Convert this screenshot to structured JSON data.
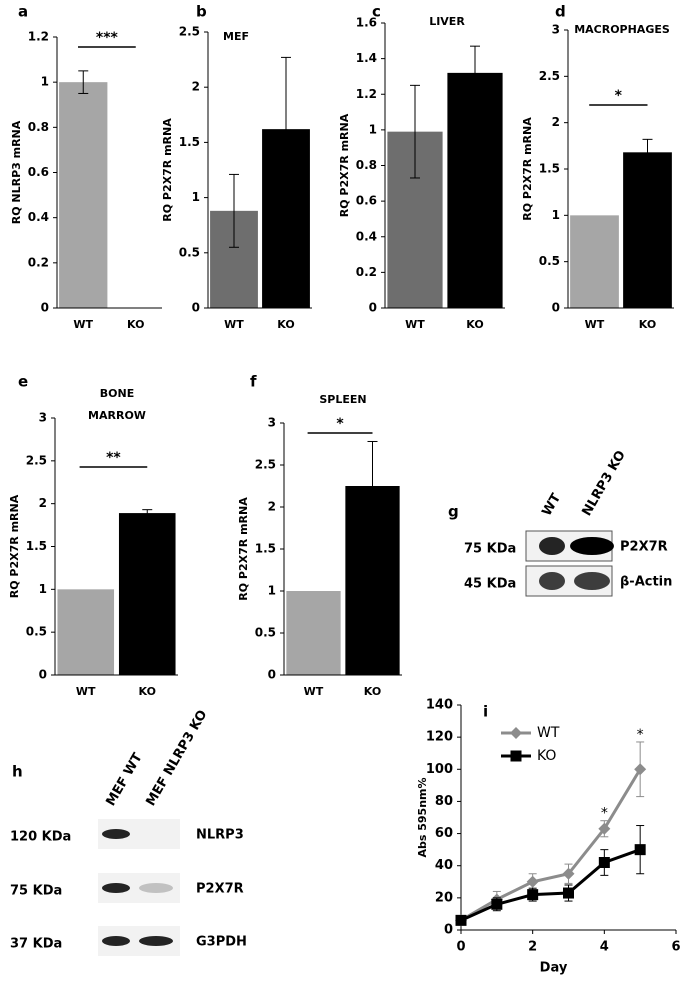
{
  "chart_data": [
    {
      "type": "bar",
      "panel": "a",
      "ylabel": "RQ NLRP3 mRNA",
      "categories": [
        "WT",
        "KO"
      ],
      "values": [
        1.0,
        0
      ],
      "errors": [
        0.05,
        null
      ],
      "colors": [
        "#a6a6a6",
        "#000000"
      ],
      "ylim": [
        0,
        1.2
      ],
      "yticks": [
        0,
        0.2,
        0.4,
        0.6,
        0.8,
        1,
        1.2
      ],
      "significance": "***"
    },
    {
      "type": "bar",
      "panel": "b",
      "title": "MEF",
      "ylabel": "RQ P2X7R mRNA",
      "categories": [
        "WT",
        "KO"
      ],
      "values": [
        0.88,
        1.62
      ],
      "errors": [
        0.33,
        0.65
      ],
      "colors": [
        "#6e6e6e",
        "#000000"
      ],
      "ylim": [
        0,
        2.5
      ],
      "yticks": [
        0,
        0.5,
        1,
        1.5,
        2,
        2.5
      ]
    },
    {
      "type": "bar",
      "panel": "c",
      "title": "LIVER",
      "ylabel": "RQ P2X7R mRNA",
      "categories": [
        "WT",
        "KO"
      ],
      "values": [
        0.99,
        1.32
      ],
      "errors": [
        0.26,
        0.15
      ],
      "colors": [
        "#6e6e6e",
        "#000000"
      ],
      "ylim": [
        0,
        1.6
      ],
      "yticks": [
        0,
        0.2,
        0.4,
        0.6,
        0.8,
        1,
        1.2,
        1.4,
        1.6
      ]
    },
    {
      "type": "bar",
      "panel": "d",
      "title": "MACROPHAGES",
      "ylabel": "RQ P2X7R mRNA",
      "categories": [
        "WT",
        "KO"
      ],
      "values": [
        1.0,
        1.68
      ],
      "errors": [
        null,
        0.14
      ],
      "colors": [
        "#a6a6a6",
        "#000000"
      ],
      "ylim": [
        0,
        3
      ],
      "yticks": [
        0,
        0.5,
        1,
        1.5,
        2,
        2.5,
        3
      ],
      "significance": "*"
    },
    {
      "type": "bar",
      "panel": "e",
      "title": "BONE MARROW",
      "ylabel": "RQ P2X7R mRNA",
      "categories": [
        "WT",
        "KO"
      ],
      "values": [
        1.0,
        1.89
      ],
      "errors": [
        null,
        0.04
      ],
      "colors": [
        "#a6a6a6",
        "#000000"
      ],
      "ylim": [
        0,
        3
      ],
      "yticks": [
        0,
        0.5,
        1,
        1.5,
        2,
        2.5,
        3
      ],
      "significance": "**"
    },
    {
      "type": "bar",
      "panel": "f",
      "title": "SPLEEN",
      "ylabel": "RQ P2X7R mRNA",
      "categories": [
        "WT",
        "KO"
      ],
      "values": [
        1.0,
        2.25
      ],
      "errors": [
        null,
        0.53
      ],
      "colors": [
        "#a6a6a6",
        "#000000"
      ],
      "ylim": [
        0,
        3
      ],
      "yticks": [
        0,
        0.5,
        1,
        1.5,
        2,
        2.5,
        3
      ],
      "significance": "*"
    },
    {
      "type": "line",
      "panel": "i",
      "xlabel": "Day",
      "ylabel": "Abs 595nm%",
      "x": [
        0,
        1,
        2,
        3,
        4,
        5
      ],
      "series": [
        {
          "name": "WT",
          "color": "#8c8c8c",
          "marker": "diamond",
          "values": [
            6,
            19,
            30,
            35,
            63,
            100
          ],
          "errors": [
            2,
            5,
            5,
            6,
            5,
            17
          ]
        },
        {
          "name": "KO",
          "color": "#000000",
          "marker": "square",
          "values": [
            6,
            16,
            22,
            23,
            42,
            50
          ],
          "errors": [
            2,
            4,
            4,
            5,
            8,
            15
          ]
        }
      ],
      "xlim": [
        0,
        6
      ],
      "xticks": [
        0,
        2,
        4,
        6
      ],
      "ylim": [
        0,
        140
      ],
      "yticks": [
        0,
        20,
        40,
        60,
        80,
        100,
        120,
        140
      ],
      "legend": "top-left",
      "annotations": [
        {
          "text": "*",
          "x": 4
        },
        {
          "text": "*",
          "x": 5
        }
      ]
    }
  ],
  "blots": [
    {
      "panel": "g",
      "lanes": [
        "WT",
        "NLRP3 KO"
      ],
      "rows": [
        {
          "size": "75 KDa",
          "protein": "P2X7R"
        },
        {
          "size": "45 KDa",
          "protein": "β-Actin"
        }
      ]
    },
    {
      "panel": "h",
      "lanes": [
        "MEF WT",
        "MEF NLRP3 KO"
      ],
      "rows": [
        {
          "size": "120 KDa",
          "protein": "NLRP3"
        },
        {
          "size": "75 KDa",
          "protein": "P2X7R"
        },
        {
          "size": "37 KDa",
          "protein": "G3PDH"
        }
      ]
    }
  ]
}
